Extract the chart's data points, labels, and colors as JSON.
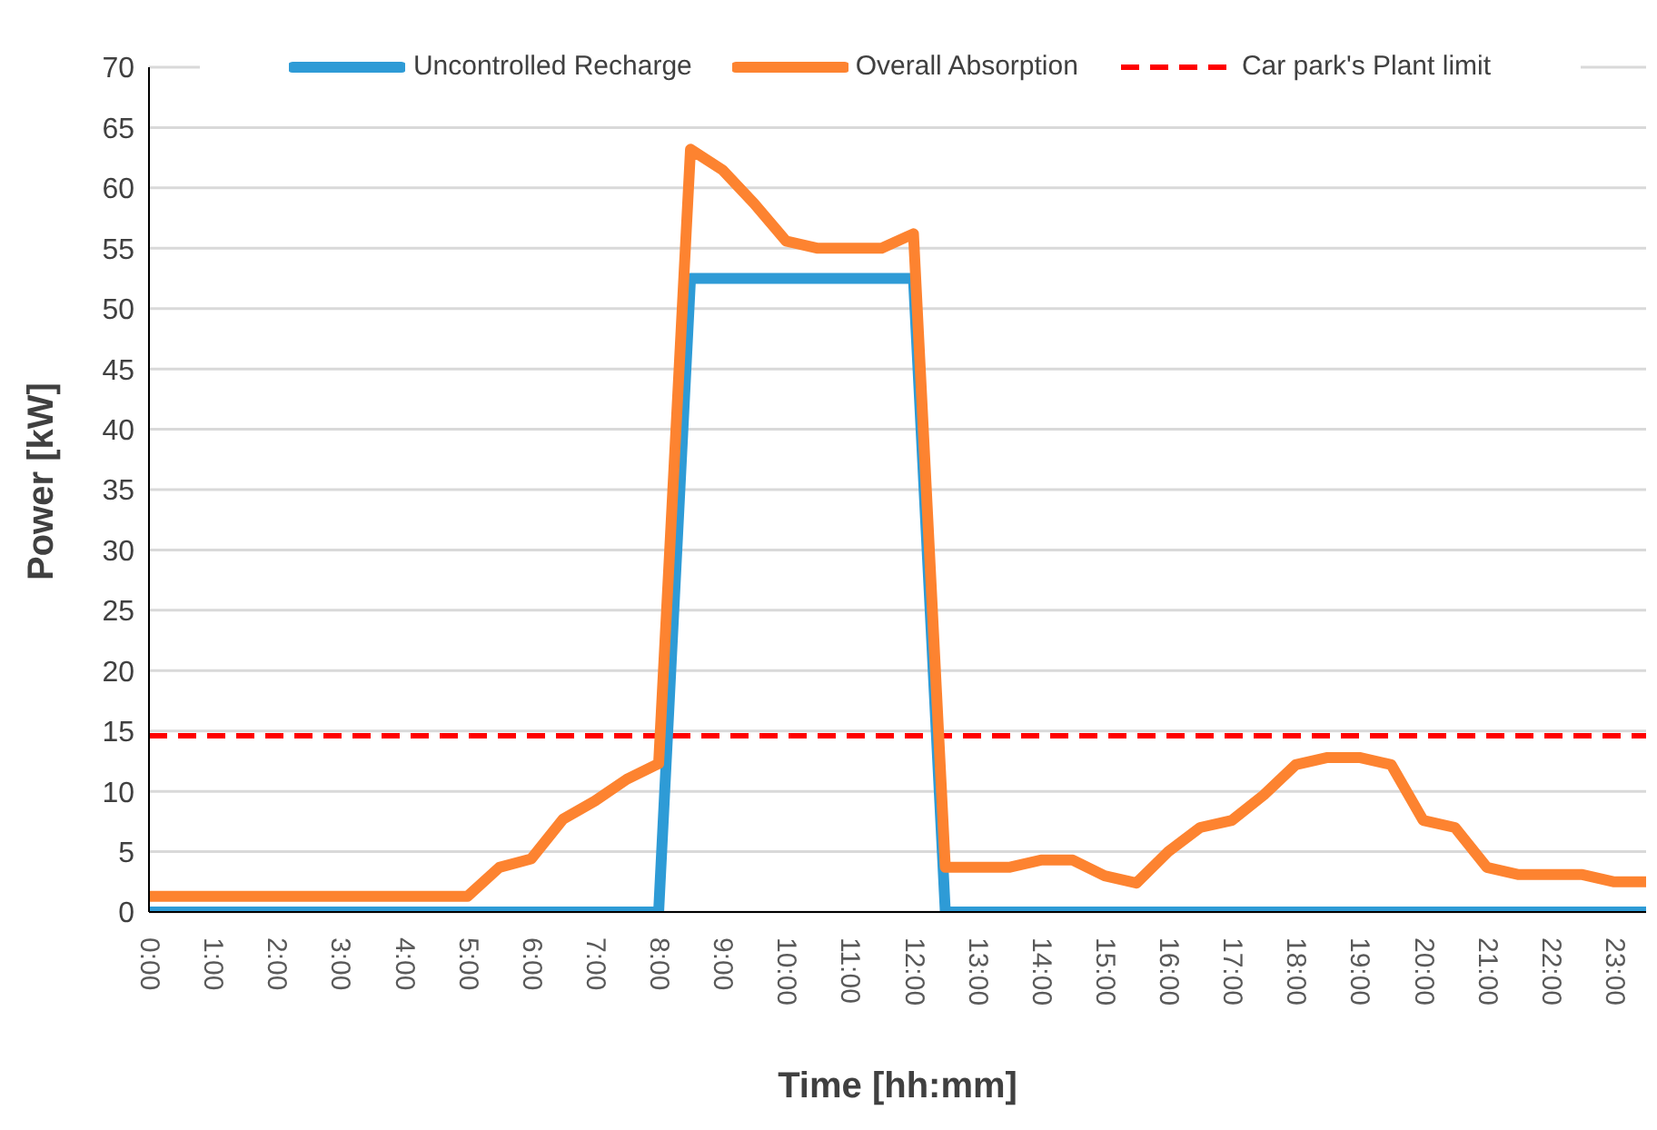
{
  "chart_data": {
    "type": "line",
    "xlabel": "Time [hh:mm]",
    "ylabel": "Power [kW]",
    "categories": [
      "0:00",
      null,
      "1:00",
      null,
      "2:00",
      null,
      "3:00",
      null,
      "4:00",
      null,
      "5:00",
      null,
      "6:00",
      null,
      "7:00",
      null,
      "8:00",
      null,
      "9:00",
      null,
      "10:00",
      null,
      "11:00",
      null,
      "12:00",
      null,
      "13:00",
      null,
      "14:00",
      null,
      "15:00",
      null,
      "16:00",
      null,
      "17:00",
      null,
      "18:00",
      null,
      "19:00",
      null,
      "20:00",
      null,
      "21:00",
      null,
      "22:00",
      null,
      "23:00",
      null
    ],
    "series": [
      {
        "name": "Uncontrolled Recharge",
        "color": "#2e9bd6",
        "values": [
          0,
          0,
          0,
          0,
          0,
          0,
          0,
          0,
          0,
          0,
          0,
          0,
          0,
          0,
          0,
          0,
          0,
          52.5,
          52.5,
          52.5,
          52.5,
          52.5,
          52.5,
          52.5,
          52.5,
          0,
          0,
          0,
          0,
          0,
          0,
          0,
          0,
          0,
          0,
          0,
          0,
          0,
          0,
          0,
          0,
          0,
          0,
          0,
          0,
          0,
          0,
          0
        ]
      },
      {
        "name": "Overall Absorption",
        "color": "#fd8330",
        "values": [
          1.3,
          1.3,
          1.3,
          1.3,
          1.3,
          1.3,
          1.3,
          1.3,
          1.3,
          1.3,
          1.3,
          3.7,
          4.4,
          7.7,
          9.2,
          11,
          12.3,
          63.2,
          61.5,
          58.7,
          55.6,
          55,
          55,
          55,
          56.2,
          3.7,
          3.7,
          3.7,
          4.3,
          4.3,
          3,
          2.4,
          5,
          7,
          7.6,
          9.7,
          12.2,
          12.8,
          12.8,
          12.2,
          7.6,
          7,
          3.7,
          3.1,
          3.1,
          3.1,
          2.5,
          2.5
        ]
      }
    ],
    "ref_lines": [
      {
        "axis": "y",
        "value": 14.6,
        "label": "Car park's Plant limit",
        "color": "#ff0000",
        "line_style": "dashed"
      }
    ],
    "ylim": [
      0,
      70
    ],
    "yticks": [
      0,
      5,
      10,
      15,
      20,
      25,
      30,
      35,
      40,
      45,
      50,
      55,
      60,
      65,
      70
    ],
    "grid": "y",
    "legend": "top",
    "marker": "none",
    "line_style": "solid"
  }
}
